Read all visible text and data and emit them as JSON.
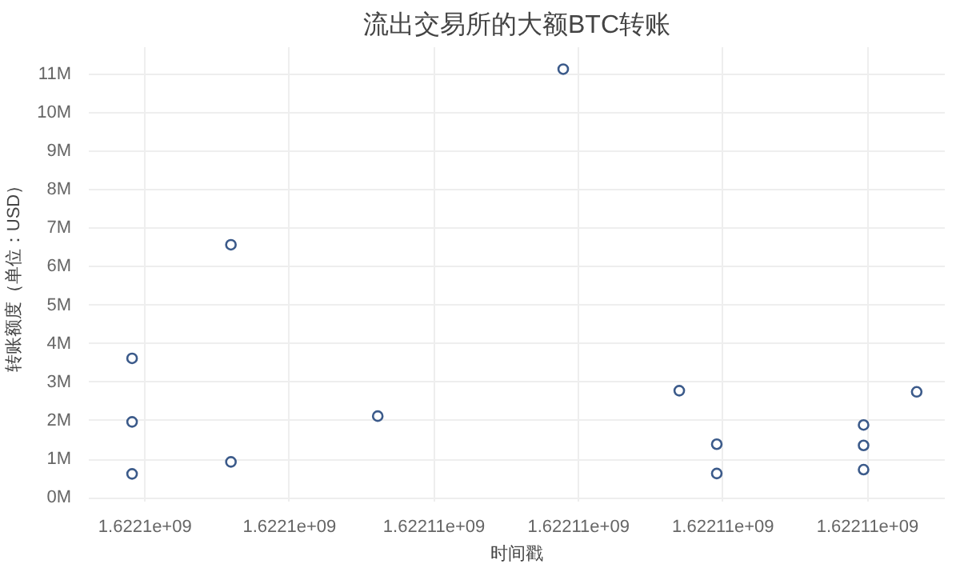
{
  "chart_data": {
    "type": "scatter",
    "title": "流出交易所的大额BTC转账",
    "xlabel": "时间戳",
    "ylabel": "转账额度（单位：USD）",
    "x": [
      1622101821,
      1622101821,
      1622101821,
      1622103189,
      1622103189,
      1622105221,
      1622107788,
      1622109394,
      1622109913,
      1622109913,
      1622111945,
      1622111945,
      1622111945,
      1622112680
    ],
    "values": [
      3620000,
      1970000,
      620000,
      6570000,
      930000,
      2120000,
      11130000,
      2780000,
      1390000,
      630000,
      1890000,
      1360000,
      730000,
      2750000
    ],
    "color": "#3b5a8a",
    "marker": "circle",
    "grid": true,
    "xlim": [
      1622101222,
      1622113069
    ],
    "xticks": [
      {
        "value": 1622102000,
        "label": "1.6221e+09"
      },
      {
        "value": 1622104000,
        "label": "1.6221e+09"
      },
      {
        "value": 1622106000,
        "label": "1.62211e+09"
      },
      {
        "value": 1622108000,
        "label": "1.62211e+09"
      },
      {
        "value": 1622110000,
        "label": "1.62211e+09"
      },
      {
        "value": 1622112000,
        "label": "1.62211e+09"
      }
    ],
    "ylim": [
      -100000,
      11700000
    ],
    "yticks": [
      {
        "value": 0,
        "label": "0M"
      },
      {
        "value": 1000000,
        "label": "1M"
      },
      {
        "value": 2000000,
        "label": "2M"
      },
      {
        "value": 3000000,
        "label": "3M"
      },
      {
        "value": 4000000,
        "label": "4M"
      },
      {
        "value": 5000000,
        "label": "5M"
      },
      {
        "value": 6000000,
        "label": "6M"
      },
      {
        "value": 7000000,
        "label": "7M"
      },
      {
        "value": 8000000,
        "label": "8M"
      },
      {
        "value": 9000000,
        "label": "9M"
      },
      {
        "value": 10000000,
        "label": "10M"
      },
      {
        "value": 11000000,
        "label": "11M"
      }
    ]
  }
}
